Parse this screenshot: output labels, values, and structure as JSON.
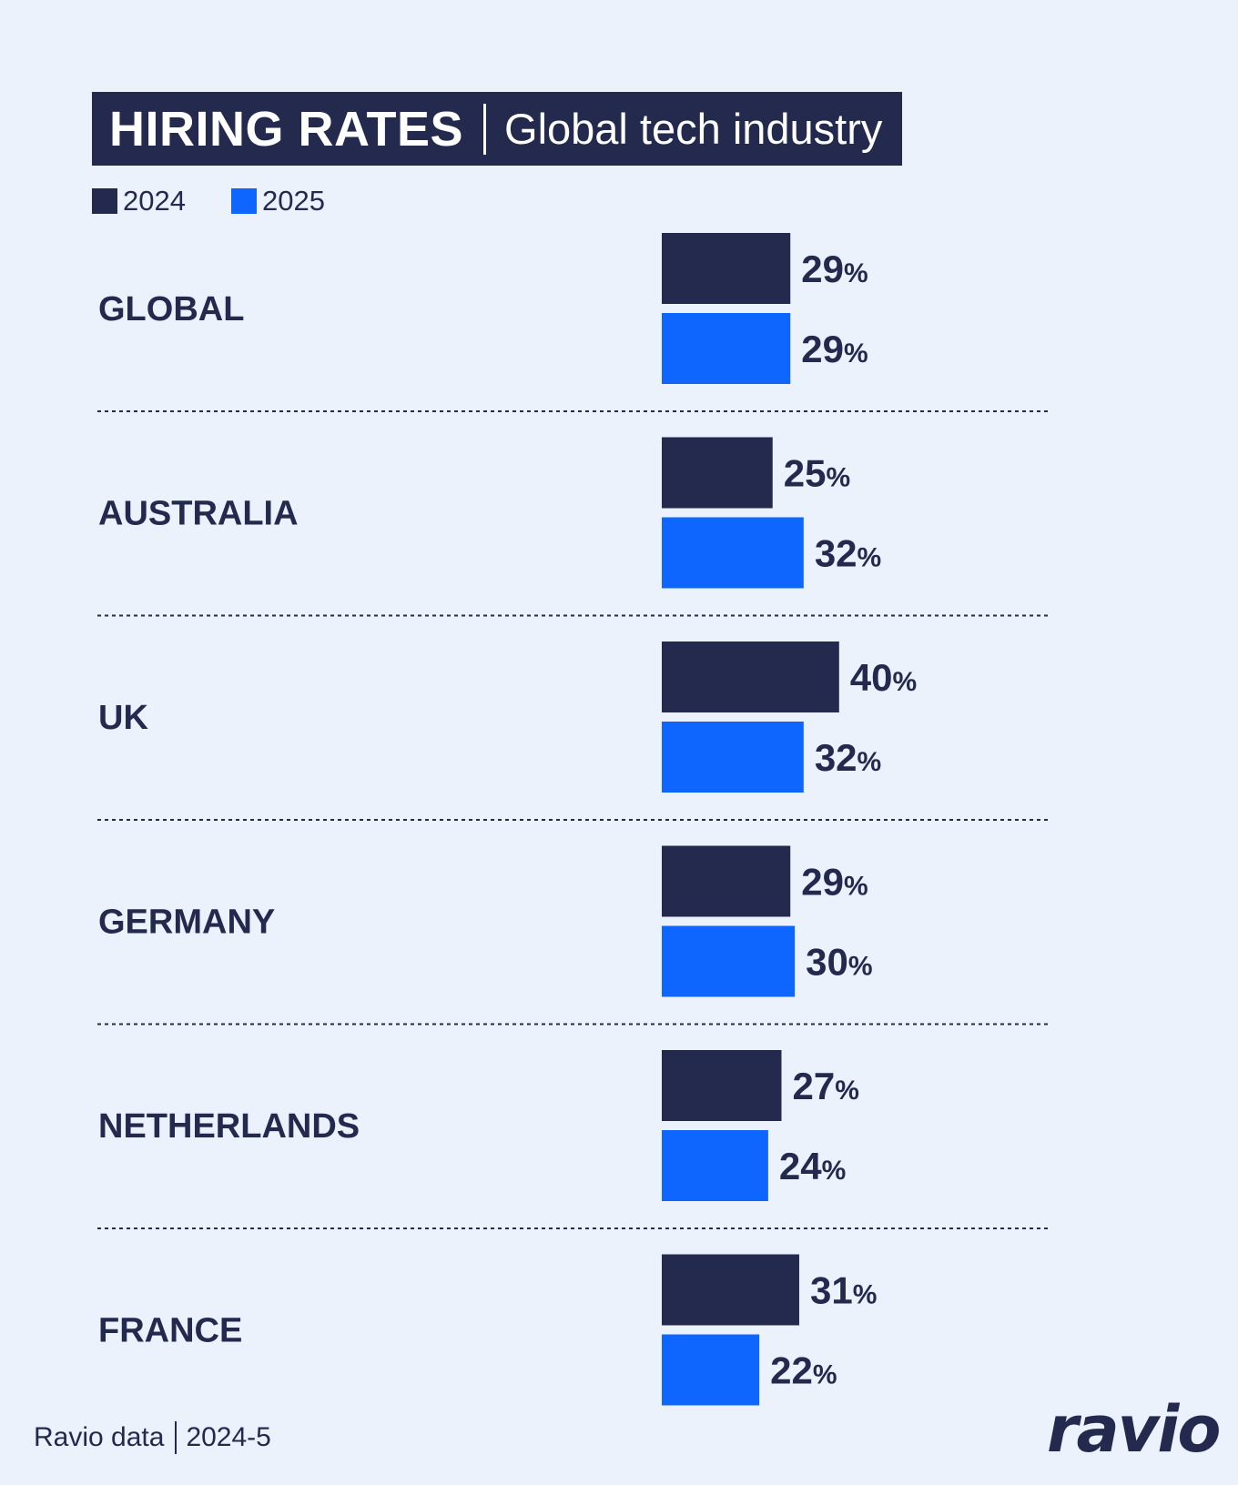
{
  "header": {
    "title": "HIRING RATES",
    "subtitle": "Global tech industry"
  },
  "legend": [
    {
      "label": "2024",
      "color": "#232a4d"
    },
    {
      "label": "2025",
      "color": "#0f66ff"
    }
  ],
  "chart_data": {
    "type": "bar",
    "orientation": "horizontal",
    "categories": [
      "GLOBAL",
      "AUSTRALIA",
      "UK",
      "GERMANY",
      "NETHERLANDS",
      "FRANCE"
    ],
    "series": [
      {
        "name": "2024",
        "color": "#232a4d",
        "values": [
          29,
          25,
          40,
          29,
          27,
          31
        ]
      },
      {
        "name": "2025",
        "color": "#0f66ff",
        "values": [
          29,
          32,
          32,
          30,
          24,
          22
        ]
      }
    ],
    "value_suffix": "%",
    "grid": false,
    "separators": "dotted"
  },
  "footer": {
    "source": "Ravio data",
    "period": "2024-5"
  },
  "logo": "ravio"
}
